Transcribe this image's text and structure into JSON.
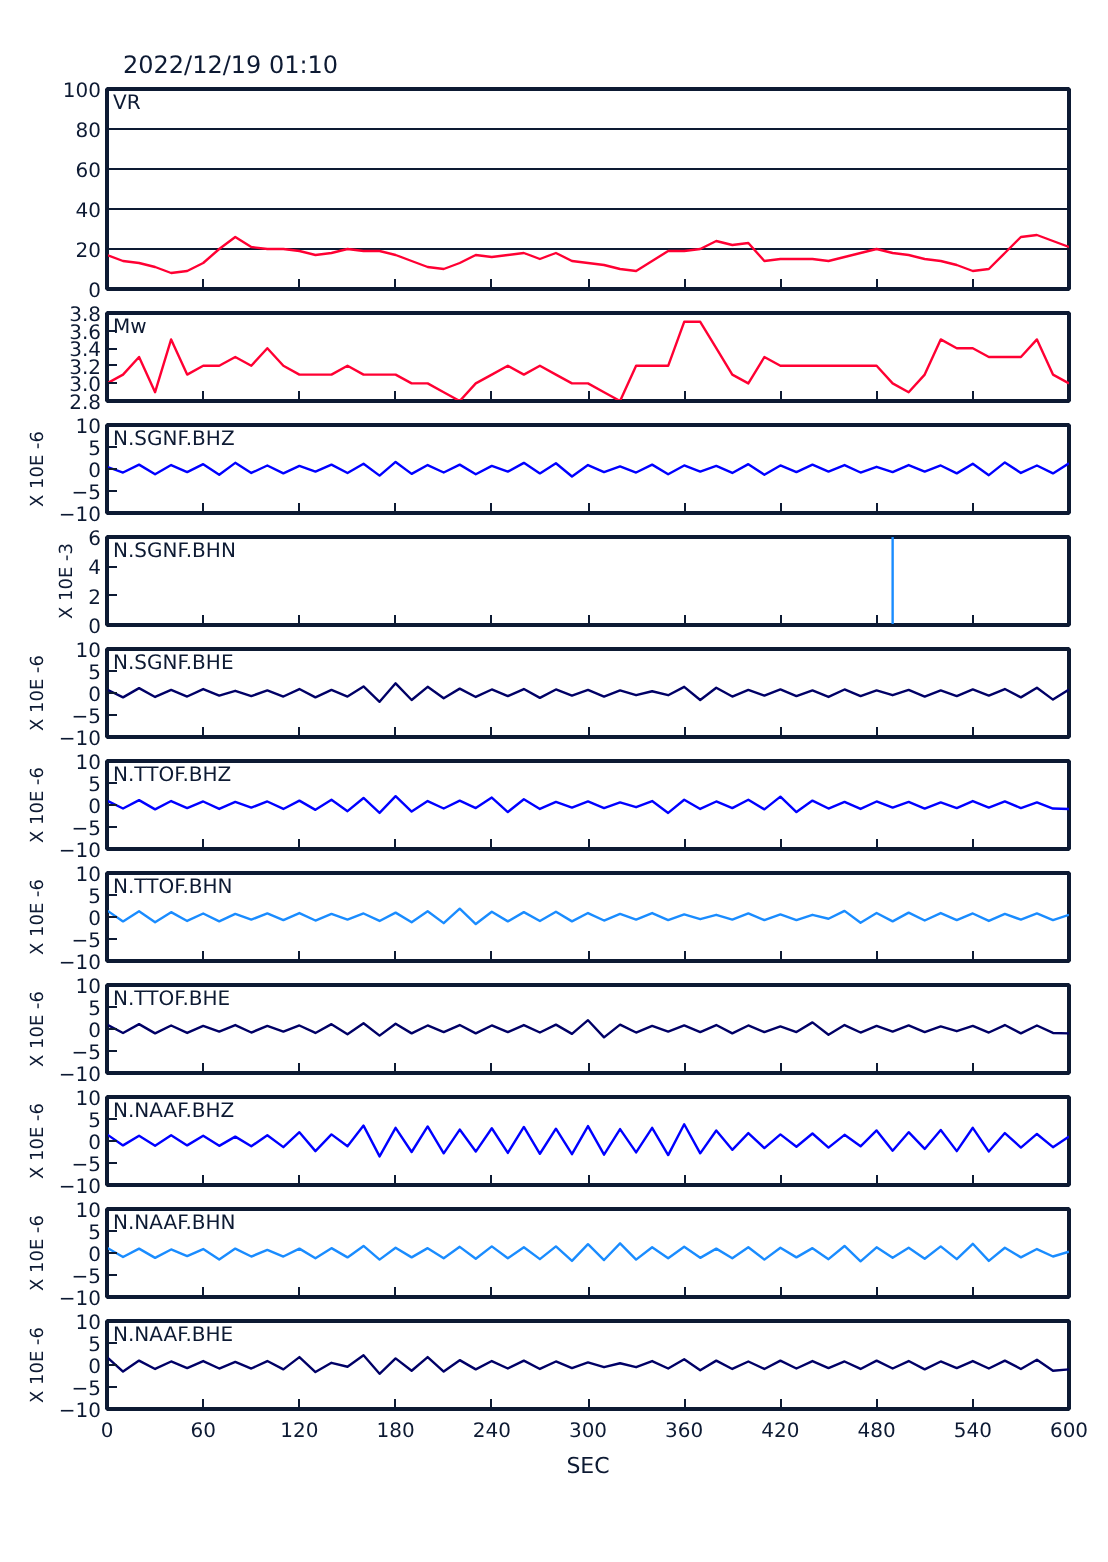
{
  "chart_data": [
    {
      "type": "line",
      "title": "2022/12/19 01:10",
      "x": [
        0,
        10,
        20,
        30,
        40,
        50,
        60,
        70,
        80,
        90,
        100,
        110,
        120,
        130,
        140,
        150,
        160,
        170,
        180,
        190,
        200,
        210,
        220,
        230,
        240,
        250,
        260,
        270,
        280,
        290,
        300,
        310,
        320,
        330,
        340,
        350,
        360,
        370,
        380,
        390,
        400,
        410,
        420,
        430,
        440,
        450,
        460,
        470,
        480,
        490,
        500,
        510,
        520,
        530,
        540,
        550,
        560,
        570,
        580,
        590,
        600
      ],
      "xlim": [
        0,
        600
      ],
      "xticks": [
        0,
        60,
        120,
        180,
        240,
        300,
        360,
        420,
        480,
        540,
        600
      ],
      "ylim": [
        0,
        100
      ],
      "yticks": [
        0,
        20,
        40,
        60,
        80,
        100
      ],
      "grid": "y",
      "tick_labels": "y",
      "series": [
        {
          "name": "VR",
          "color": "#ff0033",
          "values": [
            17,
            14,
            13,
            11,
            8,
            9,
            13,
            20,
            26,
            21,
            20,
            20,
            19,
            17,
            18,
            20,
            19,
            19,
            17,
            14,
            11,
            10,
            13,
            17,
            16,
            17,
            18,
            15,
            18,
            14,
            13,
            12,
            10,
            9,
            14,
            19,
            19,
            20,
            24,
            22,
            23,
            14,
            15,
            15,
            15,
            14,
            16,
            18,
            20,
            18,
            17,
            15,
            14,
            12,
            9,
            10,
            18,
            26,
            27,
            24,
            21
          ]
        }
      ]
    },
    {
      "type": "line",
      "x": [
        0,
        10,
        20,
        30,
        40,
        50,
        60,
        70,
        80,
        90,
        100,
        110,
        120,
        130,
        140,
        150,
        160,
        170,
        180,
        190,
        200,
        210,
        220,
        230,
        240,
        250,
        260,
        270,
        280,
        290,
        300,
        310,
        320,
        330,
        340,
        350,
        360,
        370,
        380,
        390,
        400,
        410,
        420,
        430,
        440,
        450,
        460,
        470,
        480,
        490,
        500,
        510,
        520,
        530,
        540,
        550,
        560,
        570,
        580,
        590,
        600
      ],
      "xlim": [
        0,
        600
      ],
      "xticks": [
        0,
        60,
        120,
        180,
        240,
        300,
        360,
        420,
        480,
        540,
        600
      ],
      "ylim": [
        2.8,
        3.8
      ],
      "yticks": [
        {
          "value": 2.8,
          "label": "2.8"
        },
        {
          "value": 3.0,
          "label": "3.0"
        },
        {
          "value": 3.2,
          "label": "3.2"
        },
        {
          "value": 3.4,
          "label": "3.4"
        },
        {
          "value": 3.6,
          "label": "3.6"
        },
        {
          "value": 3.8,
          "label": "3.8"
        }
      ],
      "tick_labels": "y",
      "series": [
        {
          "name": "Mw",
          "color": "#ff0033",
          "values": [
            3.0,
            3.1,
            3.3,
            2.9,
            3.5,
            3.1,
            3.2,
            3.2,
            3.3,
            3.2,
            3.4,
            3.2,
            3.1,
            3.1,
            3.1,
            3.2,
            3.1,
            3.1,
            3.1,
            3.0,
            3.0,
            2.9,
            2.8,
            3.0,
            3.1,
            3.2,
            3.1,
            3.2,
            3.1,
            3.0,
            3.0,
            2.9,
            2.8,
            3.2,
            3.2,
            3.2,
            3.7,
            3.7,
            3.4,
            3.1,
            3.0,
            3.3,
            3.2,
            3.2,
            3.2,
            3.2,
            3.2,
            3.2,
            3.2,
            3.0,
            2.9,
            3.1,
            3.5,
            3.4,
            3.4,
            3.3,
            3.3,
            3.3,
            3.5,
            3.1,
            3.0
          ]
        }
      ]
    },
    {
      "type": "line",
      "x": [
        0,
        10,
        20,
        30,
        40,
        50,
        60,
        70,
        80,
        90,
        100,
        110,
        120,
        130,
        140,
        150,
        160,
        170,
        180,
        190,
        200,
        210,
        220,
        230,
        240,
        250,
        260,
        270,
        280,
        290,
        300,
        310,
        320,
        330,
        340,
        350,
        360,
        370,
        380,
        390,
        400,
        410,
        420,
        430,
        440,
        450,
        460,
        470,
        480,
        490,
        500,
        510,
        520,
        530,
        540,
        550,
        560,
        570,
        580,
        590,
        600
      ],
      "xlim": [
        0,
        600
      ],
      "xticks": [
        0,
        60,
        120,
        180,
        240,
        300,
        360,
        420,
        480,
        540,
        600
      ],
      "ylim": [
        -10,
        10
      ],
      "yticks": [
        -10,
        -5,
        0,
        5,
        10
      ],
      "ylabel": "X 10E -6",
      "tick_labels": "y",
      "series": [
        {
          "name": "N.SGNF.BHZ",
          "color": "#0000ff",
          "values": [
            0.5,
            -0.8,
            1.0,
            -1.2,
            0.9,
            -0.7,
            1.1,
            -1.3,
            1.4,
            -0.9,
            0.8,
            -1.0,
            0.7,
            -0.6,
            1.0,
            -0.9,
            1.2,
            -1.5,
            1.6,
            -1.1,
            0.9,
            -0.8,
            1.0,
            -1.2,
            0.7,
            -0.6,
            1.4,
            -1.0,
            1.3,
            -1.7,
            0.9,
            -0.7,
            0.6,
            -0.8,
            1.0,
            -1.2,
            0.8,
            -0.6,
            0.7,
            -0.9,
            1.1,
            -1.3,
            0.8,
            -0.7,
            1.0,
            -0.6,
            0.9,
            -0.8,
            0.5,
            -0.7,
            0.9,
            -0.6,
            0.8,
            -1.0,
            1.2,
            -1.4,
            1.5,
            -0.9,
            0.8,
            -1.0,
            1.3
          ]
        }
      ]
    },
    {
      "type": "line",
      "xlim": [
        0,
        600
      ],
      "xticks": [
        0,
        60,
        120,
        180,
        240,
        300,
        360,
        420,
        480,
        540,
        600
      ],
      "ylim": [
        0,
        6
      ],
      "yticks": [
        0,
        2,
        4,
        6
      ],
      "ylabel": "X 10E -3",
      "tick_labels": "y",
      "series": [
        {
          "name": "N.SGNF.BHN",
          "color": "#1a8cff",
          "x": [
            490,
            490
          ],
          "values": [
            6,
            0
          ]
        }
      ]
    },
    {
      "type": "line",
      "x": [
        0,
        10,
        20,
        30,
        40,
        50,
        60,
        70,
        80,
        90,
        100,
        110,
        120,
        130,
        140,
        150,
        160,
        170,
        180,
        190,
        200,
        210,
        220,
        230,
        240,
        250,
        260,
        270,
        280,
        290,
        300,
        310,
        320,
        330,
        340,
        350,
        360,
        370,
        380,
        390,
        400,
        410,
        420,
        430,
        440,
        450,
        460,
        470,
        480,
        490,
        500,
        510,
        520,
        530,
        540,
        550,
        560,
        570,
        580,
        590,
        600
      ],
      "xlim": [
        0,
        600
      ],
      "xticks": [
        0,
        60,
        120,
        180,
        240,
        300,
        360,
        420,
        480,
        540,
        600
      ],
      "ylim": [
        -10,
        10
      ],
      "yticks": [
        -10,
        -5,
        0,
        5,
        10
      ],
      "ylabel": "X 10E -6",
      "tick_labels": "y",
      "series": [
        {
          "name": "N.SGNF.BHE",
          "color": "#000066",
          "values": [
            0.8,
            -1.0,
            1.1,
            -0.9,
            0.7,
            -0.8,
            0.9,
            -0.6,
            0.5,
            -0.7,
            0.6,
            -0.8,
            0.9,
            -1.0,
            0.7,
            -0.8,
            1.5,
            -2.0,
            2.2,
            -1.6,
            1.4,
            -1.2,
            1.0,
            -0.9,
            0.8,
            -0.7,
            0.9,
            -1.1,
            0.8,
            -0.6,
            0.7,
            -0.8,
            0.6,
            -0.5,
            0.4,
            -0.5,
            1.4,
            -1.6,
            1.2,
            -0.8,
            0.7,
            -0.6,
            0.8,
            -0.7,
            0.6,
            -0.9,
            0.8,
            -0.7,
            0.6,
            -0.5,
            0.7,
            -0.8,
            0.6,
            -0.7,
            0.8,
            -0.6,
            0.9,
            -1.0,
            1.2,
            -1.5,
            0.8
          ]
        }
      ]
    },
    {
      "type": "line",
      "x": [
        0,
        10,
        20,
        30,
        40,
        50,
        60,
        70,
        80,
        90,
        100,
        110,
        120,
        130,
        140,
        150,
        160,
        170,
        180,
        190,
        200,
        210,
        220,
        230,
        240,
        250,
        260,
        270,
        280,
        290,
        300,
        310,
        320,
        330,
        340,
        350,
        360,
        370,
        380,
        390,
        400,
        410,
        420,
        430,
        440,
        450,
        460,
        470,
        480,
        490,
        500,
        510,
        520,
        530,
        540,
        550,
        560,
        570,
        580,
        590,
        600
      ],
      "xlim": [
        0,
        600
      ],
      "xticks": [
        0,
        60,
        120,
        180,
        240,
        300,
        360,
        420,
        480,
        540,
        600
      ],
      "ylim": [
        -10,
        10
      ],
      "yticks": [
        -10,
        -5,
        0,
        5,
        10
      ],
      "ylabel": "X 10E -6",
      "tick_labels": "y",
      "series": [
        {
          "name": "N.TTOF.BHZ",
          "color": "#0000ff",
          "values": [
            1.0,
            -0.8,
            1.1,
            -1.0,
            0.9,
            -0.7,
            0.8,
            -0.9,
            0.7,
            -0.6,
            0.8,
            -0.9,
            1.0,
            -1.1,
            1.2,
            -1.4,
            1.6,
            -1.8,
            2.0,
            -1.5,
            0.9,
            -0.8,
            1.0,
            -0.7,
            1.7,
            -1.6,
            1.3,
            -0.9,
            0.7,
            -0.6,
            0.8,
            -0.7,
            0.6,
            -0.5,
            0.9,
            -1.8,
            1.2,
            -0.9,
            0.8,
            -0.7,
            1.2,
            -1.0,
            1.9,
            -1.6,
            1.0,
            -0.8,
            0.7,
            -0.9,
            0.8,
            -0.6,
            0.7,
            -0.8,
            0.6,
            -0.7,
            0.9,
            -0.6,
            0.8,
            -0.7,
            0.6,
            -0.8,
            -0.9
          ]
        }
      ]
    },
    {
      "type": "line",
      "x": [
        0,
        10,
        20,
        30,
        40,
        50,
        60,
        70,
        80,
        90,
        100,
        110,
        120,
        130,
        140,
        150,
        160,
        170,
        180,
        190,
        200,
        210,
        220,
        230,
        240,
        250,
        260,
        270,
        280,
        290,
        300,
        310,
        320,
        330,
        340,
        350,
        360,
        370,
        380,
        390,
        400,
        410,
        420,
        430,
        440,
        450,
        460,
        470,
        480,
        490,
        500,
        510,
        520,
        530,
        540,
        550,
        560,
        570,
        580,
        590,
        600
      ],
      "xlim": [
        0,
        600
      ],
      "xticks": [
        0,
        60,
        120,
        180,
        240,
        300,
        360,
        420,
        480,
        540,
        600
      ],
      "ylim": [
        -10,
        10
      ],
      "yticks": [
        -10,
        -5,
        0,
        5,
        10
      ],
      "ylabel": "X 10E -6",
      "tick_labels": "y",
      "series": [
        {
          "name": "N.TTOF.BHN",
          "color": "#1a8cff",
          "values": [
            1.5,
            -1.0,
            1.3,
            -1.2,
            1.1,
            -0.9,
            0.8,
            -1.0,
            0.7,
            -0.6,
            0.8,
            -0.7,
            0.9,
            -0.8,
            0.7,
            -0.6,
            0.8,
            -0.9,
            1.0,
            -1.2,
            1.3,
            -1.4,
            1.9,
            -1.6,
            1.2,
            -1.0,
            1.1,
            -0.9,
            1.2,
            -1.0,
            0.9,
            -0.8,
            0.7,
            -0.6,
            0.9,
            -0.7,
            0.6,
            -0.5,
            0.5,
            -0.6,
            0.8,
            -0.7,
            0.6,
            -0.7,
            0.5,
            -0.4,
            1.4,
            -1.3,
            0.9,
            -1.0,
            1.0,
            -0.8,
            0.9,
            -0.7,
            0.8,
            -0.9,
            0.7,
            -0.6,
            0.8,
            -0.7,
            0.5
          ]
        }
      ]
    },
    {
      "type": "line",
      "x": [
        0,
        10,
        20,
        30,
        40,
        50,
        60,
        70,
        80,
        90,
        100,
        110,
        120,
        130,
        140,
        150,
        160,
        170,
        180,
        190,
        200,
        210,
        220,
        230,
        240,
        250,
        260,
        270,
        280,
        290,
        300,
        310,
        320,
        330,
        340,
        350,
        360,
        370,
        380,
        390,
        400,
        410,
        420,
        430,
        440,
        450,
        460,
        470,
        480,
        490,
        500,
        510,
        520,
        530,
        540,
        550,
        560,
        570,
        580,
        590,
        600
      ],
      "xlim": [
        0,
        600
      ],
      "xticks": [
        0,
        60,
        120,
        180,
        240,
        300,
        360,
        420,
        480,
        540,
        600
      ],
      "ylim": [
        -10,
        10
      ],
      "yticks": [
        -10,
        -5,
        0,
        5,
        10
      ],
      "ylabel": "X 10E -6",
      "tick_labels": "y",
      "series": [
        {
          "name": "N.TTOF.BHE",
          "color": "#000066",
          "values": [
            1.0,
            -0.9,
            1.1,
            -1.0,
            0.8,
            -0.9,
            0.7,
            -0.6,
            0.9,
            -0.8,
            0.7,
            -0.6,
            0.8,
            -0.9,
            1.1,
            -1.2,
            1.3,
            -1.5,
            1.2,
            -1.0,
            0.8,
            -0.7,
            0.9,
            -1.0,
            0.8,
            -0.7,
            0.9,
            -0.8,
            1.0,
            -1.1,
            2.0,
            -1.9,
            1.0,
            -0.8,
            0.7,
            -0.6,
            0.8,
            -0.7,
            0.9,
            -1.0,
            0.8,
            -0.7,
            0.6,
            -0.7,
            1.5,
            -1.3,
            0.9,
            -0.8,
            0.7,
            -0.6,
            0.8,
            -0.7,
            0.6,
            -0.5,
            0.7,
            -0.8,
            0.9,
            -1.0,
            0.8,
            -0.9,
            -1.0
          ]
        }
      ]
    },
    {
      "type": "line",
      "x": [
        0,
        10,
        20,
        30,
        40,
        50,
        60,
        70,
        80,
        90,
        100,
        110,
        120,
        130,
        140,
        150,
        160,
        170,
        180,
        190,
        200,
        210,
        220,
        230,
        240,
        250,
        260,
        270,
        280,
        290,
        300,
        310,
        320,
        330,
        340,
        350,
        360,
        370,
        380,
        390,
        400,
        410,
        420,
        430,
        440,
        450,
        460,
        470,
        480,
        490,
        500,
        510,
        520,
        530,
        540,
        550,
        560,
        570,
        580,
        590,
        600
      ],
      "xlim": [
        0,
        600
      ],
      "xticks": [
        0,
        60,
        120,
        180,
        240,
        300,
        360,
        420,
        480,
        540,
        600
      ],
      "ylim": [
        -10,
        10
      ],
      "yticks": [
        -10,
        -5,
        0,
        5,
        10
      ],
      "ylabel": "X 10E -6",
      "tick_labels": "y",
      "series": [
        {
          "name": "N.NAAF.BHZ",
          "color": "#0000ff",
          "values": [
            1.5,
            -1.0,
            1.2,
            -1.1,
            1.3,
            -1.0,
            1.2,
            -1.1,
            1.0,
            -1.2,
            1.3,
            -1.4,
            2.0,
            -2.3,
            1.5,
            -1.2,
            3.5,
            -3.5,
            3.0,
            -2.5,
            3.3,
            -2.8,
            2.6,
            -2.4,
            2.9,
            -2.7,
            3.2,
            -2.9,
            2.8,
            -3.0,
            3.4,
            -3.1,
            2.7,
            -2.6,
            3.0,
            -3.2,
            3.8,
            -2.8,
            2.4,
            -2.0,
            1.8,
            -1.6,
            1.5,
            -1.3,
            1.7,
            -1.5,
            1.4,
            -1.2,
            2.4,
            -2.2,
            2.0,
            -1.8,
            2.5,
            -2.3,
            3.0,
            -2.4,
            1.8,
            -1.5,
            1.6,
            -1.4,
            1.0
          ]
        }
      ]
    },
    {
      "type": "line",
      "x": [
        0,
        10,
        20,
        30,
        40,
        50,
        60,
        70,
        80,
        90,
        100,
        110,
        120,
        130,
        140,
        150,
        160,
        170,
        180,
        190,
        200,
        210,
        220,
        230,
        240,
        250,
        260,
        270,
        280,
        290,
        300,
        310,
        320,
        330,
        340,
        350,
        360,
        370,
        380,
        390,
        400,
        410,
        420,
        430,
        440,
        450,
        460,
        470,
        480,
        490,
        500,
        510,
        520,
        530,
        540,
        550,
        560,
        570,
        580,
        590,
        600
      ],
      "xlim": [
        0,
        600
      ],
      "xticks": [
        0,
        60,
        120,
        180,
        240,
        300,
        360,
        420,
        480,
        540,
        600
      ],
      "ylim": [
        -10,
        10
      ],
      "yticks": [
        -10,
        -5,
        0,
        5,
        10
      ],
      "ylabel": "X 10E -6",
      "tick_labels": "y",
      "series": [
        {
          "name": "N.NAAF.BHN",
          "color": "#1a8cff",
          "values": [
            1.2,
            -0.9,
            1.0,
            -1.1,
            0.8,
            -0.7,
            0.9,
            -1.5,
            1.0,
            -0.8,
            0.7,
            -0.8,
            1.0,
            -1.2,
            1.1,
            -1.0,
            1.6,
            -1.5,
            1.2,
            -1.0,
            1.1,
            -1.2,
            1.4,
            -1.3,
            1.5,
            -1.2,
            1.3,
            -1.4,
            1.5,
            -1.8,
            2.0,
            -1.6,
            2.2,
            -1.5,
            1.3,
            -1.2,
            1.4,
            -1.1,
            1.0,
            -1.2,
            1.3,
            -1.5,
            1.2,
            -1.0,
            1.1,
            -1.4,
            1.6,
            -1.9,
            1.3,
            -1.1,
            1.2,
            -1.3,
            1.5,
            -1.4,
            2.1,
            -1.8,
            1.2,
            -1.0,
            0.9,
            -0.8,
            0.3
          ]
        }
      ]
    },
    {
      "type": "line",
      "x": [
        0,
        10,
        20,
        30,
        40,
        50,
        60,
        70,
        80,
        90,
        100,
        110,
        120,
        130,
        140,
        150,
        160,
        170,
        180,
        190,
        200,
        210,
        220,
        230,
        240,
        250,
        260,
        270,
        280,
        290,
        300,
        310,
        320,
        330,
        340,
        350,
        360,
        370,
        380,
        390,
        400,
        410,
        420,
        430,
        440,
        450,
        460,
        470,
        480,
        490,
        500,
        510,
        520,
        530,
        540,
        550,
        560,
        570,
        580,
        590,
        600
      ],
      "xlim": [
        0,
        600
      ],
      "xticks": [
        0,
        60,
        120,
        180,
        240,
        300,
        360,
        420,
        480,
        540,
        600
      ],
      "ylim": [
        -10,
        10
      ],
      "yticks": [
        -10,
        -5,
        0,
        5,
        10
      ],
      "ylabel": "X 10E -6",
      "xlabel": "SEC",
      "series": [
        {
          "name": "N.NAAF.BHE",
          "color": "#000066",
          "values": [
            1.8,
            -1.5,
            1.0,
            -0.9,
            0.8,
            -0.7,
            0.9,
            -0.8,
            0.7,
            -0.8,
            0.9,
            -1.0,
            1.8,
            -1.6,
            0.5,
            -0.4,
            2.2,
            -2.0,
            1.5,
            -1.3,
            1.8,
            -1.5,
            1.1,
            -1.0,
            0.9,
            -0.8,
            1.0,
            -0.9,
            0.8,
            -0.7,
            0.6,
            -0.5,
            0.4,
            -0.5,
            0.9,
            -0.8,
            1.3,
            -1.2,
            1.0,
            -0.9,
            0.8,
            -0.9,
            1.0,
            -0.8,
            0.9,
            -0.7,
            0.8,
            -0.9,
            1.0,
            -0.8,
            0.9,
            -1.0,
            0.8,
            -0.7,
            0.9,
            -0.8,
            1.0,
            -0.9,
            1.2,
            -1.3,
            -1.0
          ]
        }
      ]
    }
  ]
}
